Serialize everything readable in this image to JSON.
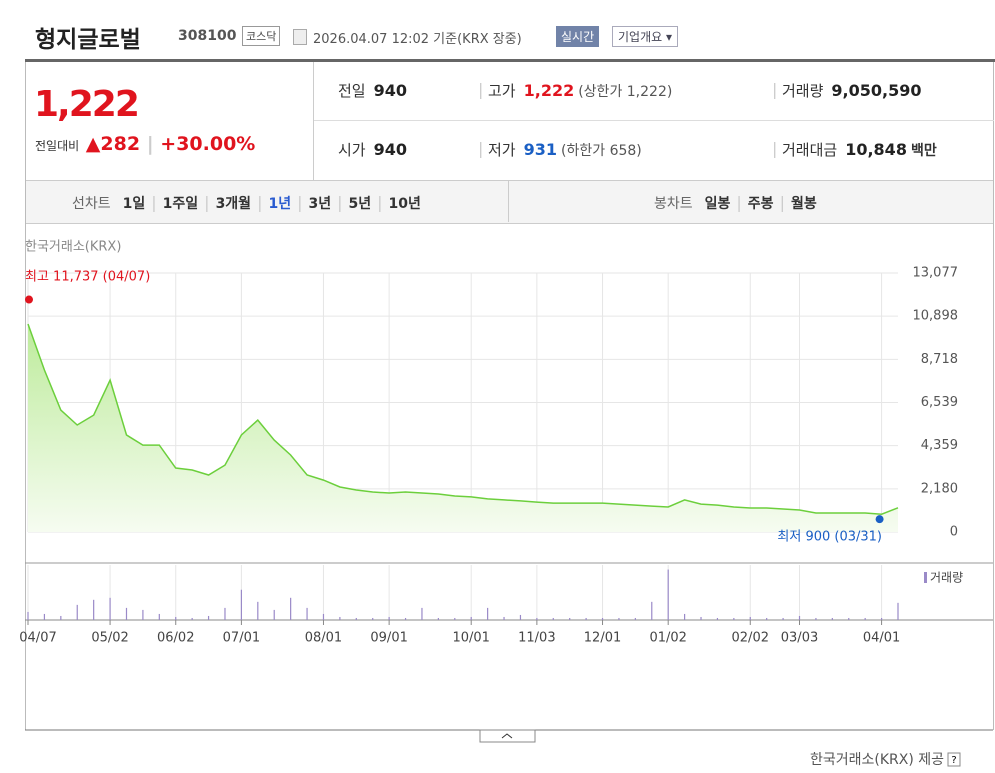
{
  "header": {
    "title": "형지글로벌",
    "code": "308100",
    "market": "코스닥",
    "datetime": "2026.04.07 12:02",
    "basis": "기준(KRX 장중)",
    "realtime": "실시간",
    "company": "기업개요"
  },
  "quote": {
    "price": "1,222",
    "change_label": "전일대비",
    "change": "282",
    "change_pct": "+30.00%",
    "cells": [
      [
        {
          "label": "전일",
          "value": "940"
        },
        {
          "label": "고가",
          "value": "1,222",
          "note": "(상한가 1,222)"
        },
        {
          "label": "거래량",
          "value": "9,050,590"
        }
      ],
      [
        {
          "label": "시가",
          "value": "940"
        },
        {
          "label": "저가",
          "value": "931",
          "note": "(하한가 658)"
        },
        {
          "label": "거래대금",
          "value": "10,848",
          "unit": "백만"
        }
      ]
    ]
  },
  "tabs": {
    "line_label": "선차트",
    "periods": [
      "1일",
      "1주일",
      "3개월",
      "1년",
      "3년",
      "5년",
      "10년"
    ],
    "selected": 3,
    "candle_label": "봉차트",
    "candle_periods": [
      "일봉",
      "주봉",
      "월봉"
    ]
  },
  "chart_data": [
    {
      "type": "area",
      "source": "한국거래소(KRX)",
      "color": "#6ccf3c",
      "categories": [
        "04/07",
        null,
        null,
        null,
        null,
        "05/02",
        null,
        null,
        null,
        "06/02",
        null,
        null,
        null,
        "07/01",
        null,
        null,
        null,
        null,
        "08/01",
        null,
        null,
        null,
        "09/01",
        null,
        null,
        null,
        null,
        "10/01",
        null,
        null,
        null,
        "11/03",
        null,
        null,
        null,
        "12/01",
        null,
        null,
        null,
        "01/02",
        null,
        null,
        null,
        null,
        "02/02",
        null,
        null,
        "03/03",
        null,
        null,
        null,
        null,
        "04/01",
        null
      ],
      "values": [
        10500,
        8180,
        6160,
        5400,
        5900,
        7670,
        4900,
        4390,
        4390,
        3230,
        3130,
        2880,
        3380,
        4900,
        5650,
        4640,
        3890,
        2880,
        2620,
        2270,
        2120,
        2020,
        1970,
        2020,
        1970,
        1920,
        1820,
        1770,
        1670,
        1620,
        1570,
        1510,
        1460,
        1460,
        1460,
        1460,
        1410,
        1360,
        1310,
        1260,
        1620,
        1410,
        1360,
        1260,
        1210,
        1210,
        1160,
        1110,
        960,
        960,
        960,
        960,
        900,
        1222
      ],
      "ylim": [
        0,
        13077
      ],
      "yticks": [
        0,
        {
          "value": 2180,
          "label": "2,180"
        },
        {
          "value": 4359,
          "label": "4,359"
        },
        {
          "value": 6539,
          "label": "6,539"
        },
        {
          "value": 8718,
          "label": "8,718"
        },
        {
          "value": 10898,
          "label": "10,898"
        },
        {
          "value": 13077,
          "label": "13,077"
        }
      ],
      "grid": true,
      "high": {
        "label": "최고 11,737 (04/07)",
        "value": 11737,
        "index": 0,
        "color": "#e0141e"
      },
      "low": {
        "label": "최저 900 (03/31)",
        "value": 900,
        "index": 52,
        "color": "#1a5fc4"
      }
    },
    {
      "type": "bar",
      "color": "#9a8ac8",
      "series_name": "거래량",
      "values": [
        4256000,
        3192000,
        2128000,
        7980000,
        10640000,
        11704000,
        6384000,
        5320000,
        3192000,
        1596000,
        1064000,
        2128000,
        6384000,
        15960000,
        9576000,
        5320000,
        11704000,
        6384000,
        3192000,
        1596000,
        1064000,
        1064000,
        1596000,
        1064000,
        6384000,
        1064000,
        1064000,
        1596000,
        6384000,
        1596000,
        2660000,
        1064000,
        1064000,
        1064000,
        1064000,
        1064000,
        1064000,
        1064000,
        9576000,
        26600000,
        3192000,
        1596000,
        1064000,
        1064000,
        1596000,
        1064000,
        1064000,
        2128000,
        1064000,
        1064000,
        1064000,
        1064000,
        1064000,
        9050590
      ],
      "ylim": [
        0,
        29000000
      ]
    }
  ],
  "footer": "한국거래소(KRX) 제공"
}
